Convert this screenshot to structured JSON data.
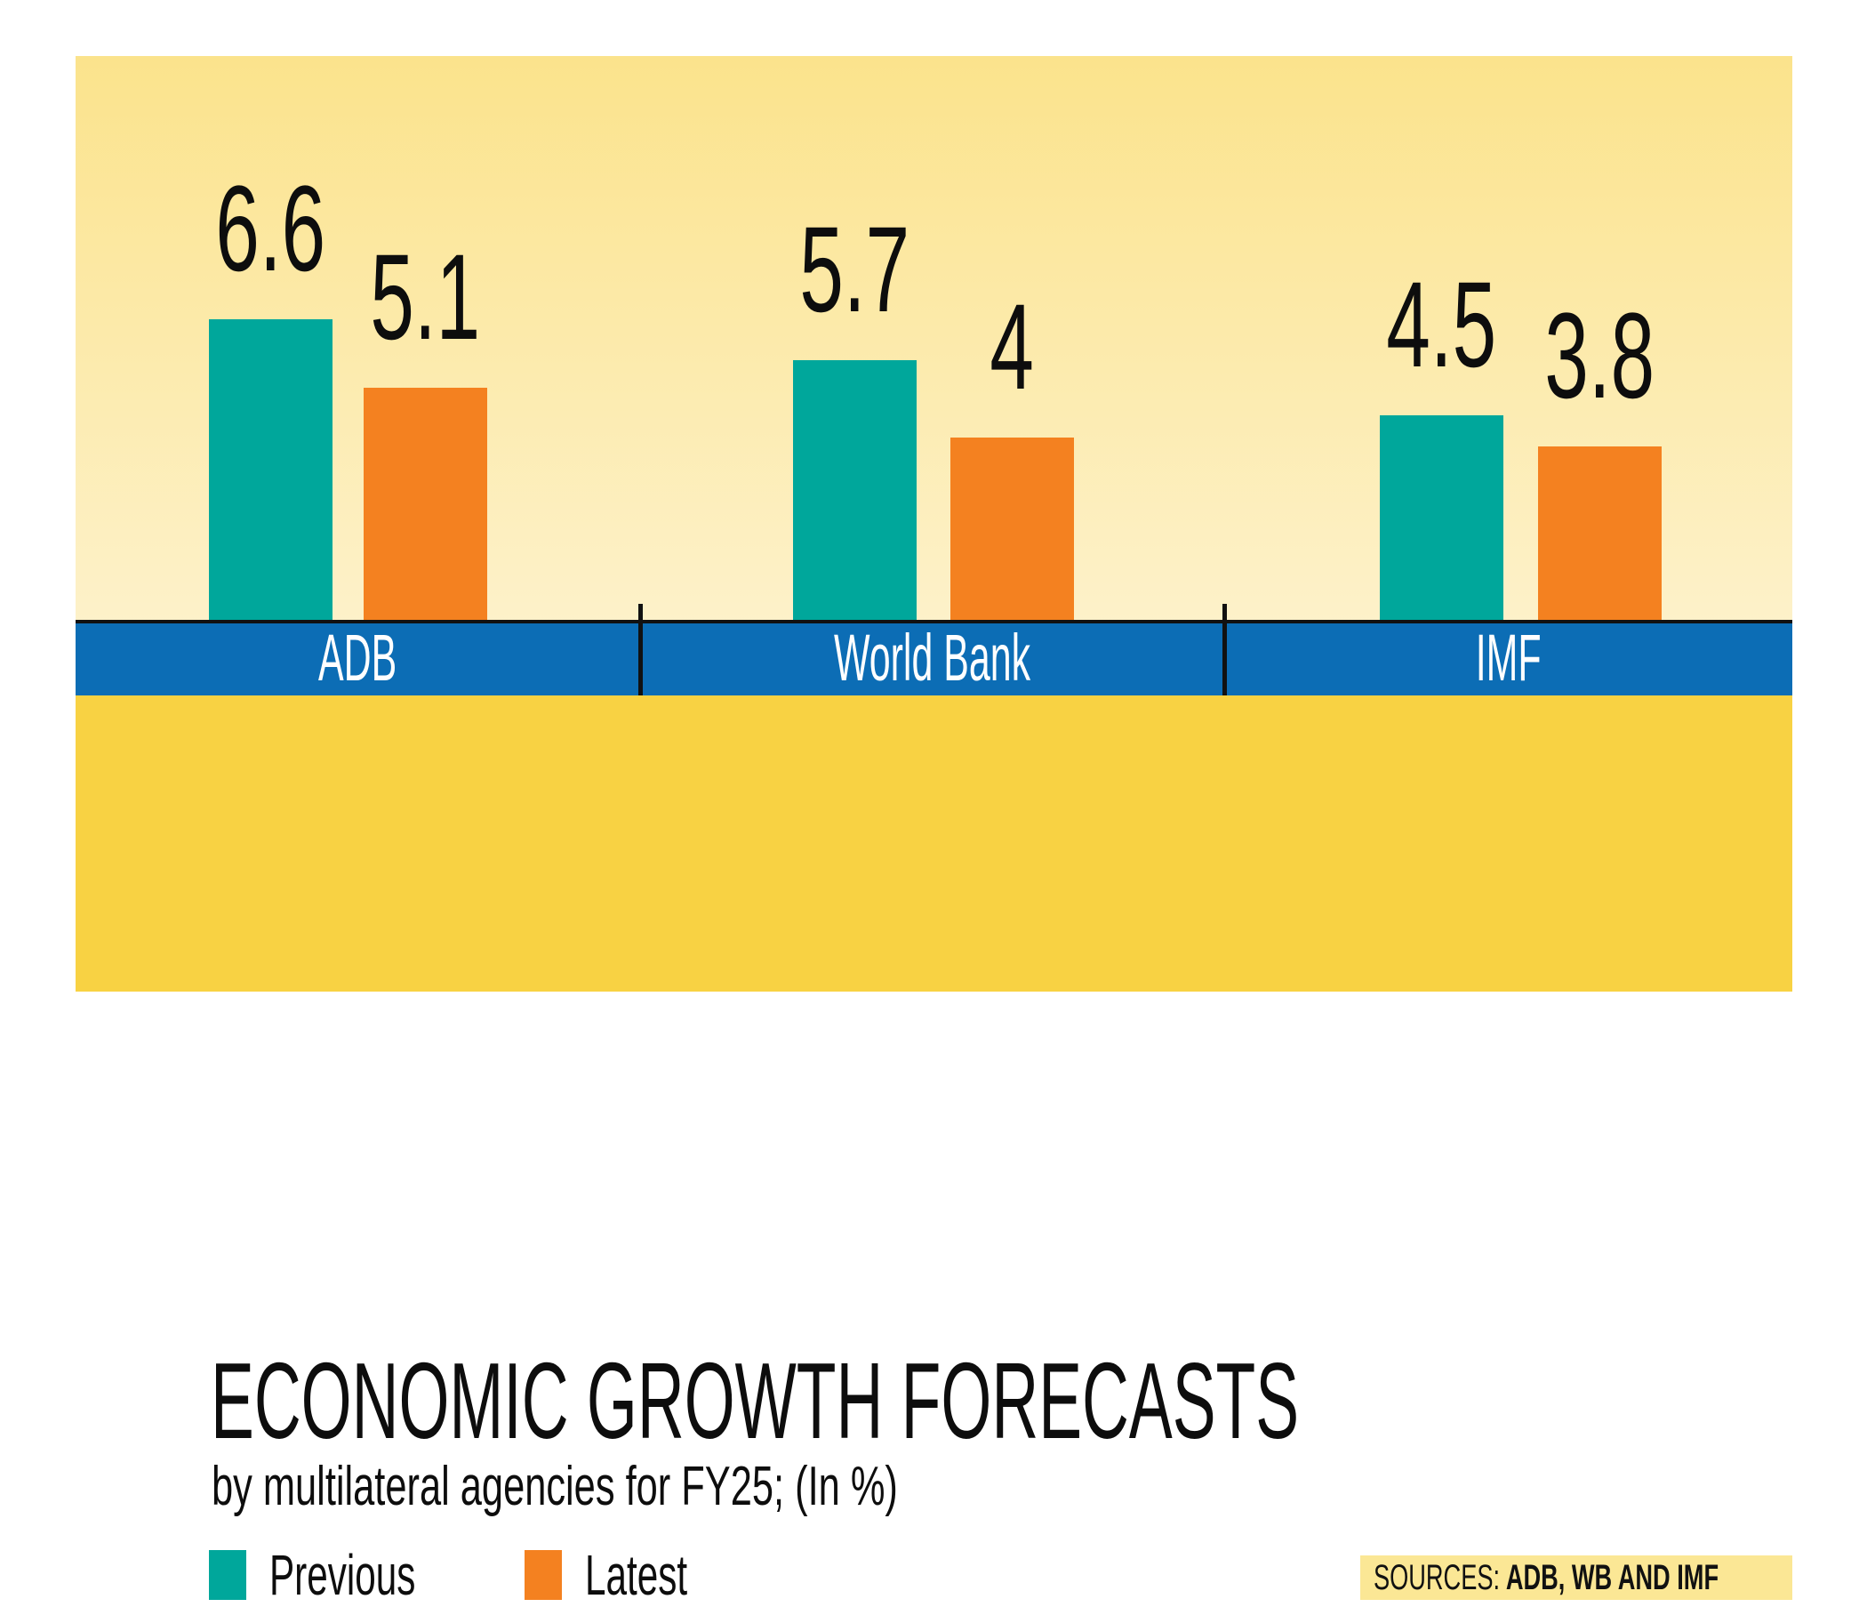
{
  "chart_data": {
    "type": "bar",
    "title": "ECONOMIC GROWTH FORECASTS",
    "subtitle": "by multilateral agencies for FY25; (In %)",
    "categories": [
      "ADB",
      "World Bank",
      "IMF"
    ],
    "series": [
      {
        "name": "Previous",
        "color": "#00A79B",
        "values": [
          6.6,
          5.7,
          4.5
        ]
      },
      {
        "name": "Latest",
        "color": "#F48120",
        "values": [
          5.1,
          4,
          3.8
        ]
      }
    ],
    "ylim": [
      0,
      6.9
    ],
    "grid": false,
    "value_labels_shown": true,
    "legend_position": "bottom-left"
  },
  "footer": {
    "sources_label": "SOURCES:",
    "sources_value": "ADB, WB AND IMF"
  },
  "colors": {
    "previous": "#00A79B",
    "latest": "#F48120",
    "axis_band": "#0C6DB5",
    "axis_text": "#FFFFFF",
    "footer_band": "#F8D243",
    "sources_bg": "#FBE795",
    "card_bg_top": "#FBE38C",
    "card_bg_bottom": "#FFFCF0",
    "text": "#111111"
  }
}
